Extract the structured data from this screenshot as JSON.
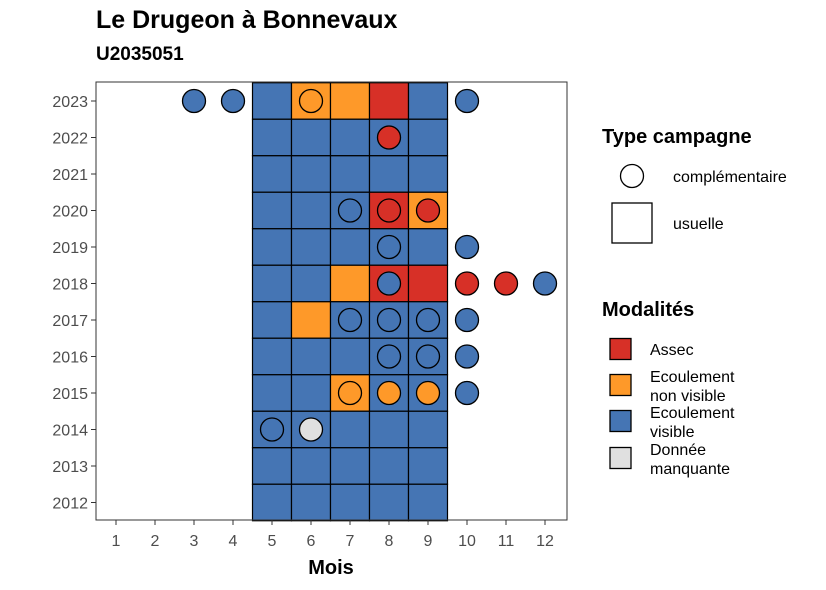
{
  "title": "Le Drugeon à Bonnevaux",
  "subtitle": "U2035051",
  "colors": {
    "assec": "#d73027",
    "ecoulement_non_visible": "#fe9929",
    "ecoulement_visible": "#4575b4",
    "donnee_manquante": "#e0e0e0"
  },
  "chart_data": {
    "type": "heatmap",
    "xlabel": "Mois",
    "x_ticks": [
      "1",
      "2",
      "3",
      "4",
      "5",
      "6",
      "7",
      "8",
      "9",
      "10",
      "11",
      "12"
    ],
    "y_ticks": [
      "2023",
      "2022",
      "2021",
      "2020",
      "2019",
      "2018",
      "2017",
      "2016",
      "2015",
      "2014",
      "2013",
      "2012"
    ],
    "tiles": [
      {
        "year": 2023,
        "month": 5,
        "modalite": "ecoulement_visible"
      },
      {
        "year": 2023,
        "month": 6,
        "modalite": "ecoulement_non_visible"
      },
      {
        "year": 2023,
        "month": 7,
        "modalite": "ecoulement_non_visible"
      },
      {
        "year": 2023,
        "month": 8,
        "modalite": "assec"
      },
      {
        "year": 2023,
        "month": 9,
        "modalite": "ecoulement_visible"
      },
      {
        "year": 2022,
        "month": 5,
        "modalite": "ecoulement_visible"
      },
      {
        "year": 2022,
        "month": 6,
        "modalite": "ecoulement_visible"
      },
      {
        "year": 2022,
        "month": 7,
        "modalite": "ecoulement_visible"
      },
      {
        "year": 2022,
        "month": 8,
        "modalite": "ecoulement_visible"
      },
      {
        "year": 2022,
        "month": 9,
        "modalite": "ecoulement_visible"
      },
      {
        "year": 2021,
        "month": 5,
        "modalite": "ecoulement_visible"
      },
      {
        "year": 2021,
        "month": 6,
        "modalite": "ecoulement_visible"
      },
      {
        "year": 2021,
        "month": 7,
        "modalite": "ecoulement_visible"
      },
      {
        "year": 2021,
        "month": 8,
        "modalite": "ecoulement_visible"
      },
      {
        "year": 2021,
        "month": 9,
        "modalite": "ecoulement_visible"
      },
      {
        "year": 2020,
        "month": 5,
        "modalite": "ecoulement_visible"
      },
      {
        "year": 2020,
        "month": 6,
        "modalite": "ecoulement_visible"
      },
      {
        "year": 2020,
        "month": 7,
        "modalite": "ecoulement_visible"
      },
      {
        "year": 2020,
        "month": 8,
        "modalite": "assec"
      },
      {
        "year": 2020,
        "month": 9,
        "modalite": "ecoulement_non_visible"
      },
      {
        "year": 2019,
        "month": 5,
        "modalite": "ecoulement_visible"
      },
      {
        "year": 2019,
        "month": 6,
        "modalite": "ecoulement_visible"
      },
      {
        "year": 2019,
        "month": 7,
        "modalite": "ecoulement_visible"
      },
      {
        "year": 2019,
        "month": 8,
        "modalite": "ecoulement_visible"
      },
      {
        "year": 2019,
        "month": 9,
        "modalite": "ecoulement_visible"
      },
      {
        "year": 2018,
        "month": 5,
        "modalite": "ecoulement_visible"
      },
      {
        "year": 2018,
        "month": 6,
        "modalite": "ecoulement_visible"
      },
      {
        "year": 2018,
        "month": 7,
        "modalite": "ecoulement_non_visible"
      },
      {
        "year": 2018,
        "month": 8,
        "modalite": "assec"
      },
      {
        "year": 2018,
        "month": 9,
        "modalite": "assec"
      },
      {
        "year": 2017,
        "month": 5,
        "modalite": "ecoulement_visible"
      },
      {
        "year": 2017,
        "month": 6,
        "modalite": "ecoulement_non_visible"
      },
      {
        "year": 2017,
        "month": 7,
        "modalite": "ecoulement_visible"
      },
      {
        "year": 2017,
        "month": 8,
        "modalite": "ecoulement_visible"
      },
      {
        "year": 2017,
        "month": 9,
        "modalite": "ecoulement_visible"
      },
      {
        "year": 2016,
        "month": 5,
        "modalite": "ecoulement_visible"
      },
      {
        "year": 2016,
        "month": 6,
        "modalite": "ecoulement_visible"
      },
      {
        "year": 2016,
        "month": 7,
        "modalite": "ecoulement_visible"
      },
      {
        "year": 2016,
        "month": 8,
        "modalite": "ecoulement_visible"
      },
      {
        "year": 2016,
        "month": 9,
        "modalite": "ecoulement_visible"
      },
      {
        "year": 2015,
        "month": 5,
        "modalite": "ecoulement_visible"
      },
      {
        "year": 2015,
        "month": 6,
        "modalite": "ecoulement_visible"
      },
      {
        "year": 2015,
        "month": 7,
        "modalite": "ecoulement_non_visible"
      },
      {
        "year": 2015,
        "month": 8,
        "modalite": "ecoulement_visible"
      },
      {
        "year": 2015,
        "month": 9,
        "modalite": "ecoulement_visible"
      },
      {
        "year": 2014,
        "month": 5,
        "modalite": "ecoulement_visible"
      },
      {
        "year": 2014,
        "month": 6,
        "modalite": "ecoulement_visible"
      },
      {
        "year": 2014,
        "month": 7,
        "modalite": "ecoulement_visible"
      },
      {
        "year": 2014,
        "month": 8,
        "modalite": "ecoulement_visible"
      },
      {
        "year": 2014,
        "month": 9,
        "modalite": "ecoulement_visible"
      },
      {
        "year": 2013,
        "month": 5,
        "modalite": "ecoulement_visible"
      },
      {
        "year": 2013,
        "month": 6,
        "modalite": "ecoulement_visible"
      },
      {
        "year": 2013,
        "month": 7,
        "modalite": "ecoulement_visible"
      },
      {
        "year": 2013,
        "month": 8,
        "modalite": "ecoulement_visible"
      },
      {
        "year": 2013,
        "month": 9,
        "modalite": "ecoulement_visible"
      },
      {
        "year": 2012,
        "month": 5,
        "modalite": "ecoulement_visible"
      },
      {
        "year": 2012,
        "month": 6,
        "modalite": "ecoulement_visible"
      },
      {
        "year": 2012,
        "month": 7,
        "modalite": "ecoulement_visible"
      },
      {
        "year": 2012,
        "month": 8,
        "modalite": "ecoulement_visible"
      },
      {
        "year": 2012,
        "month": 9,
        "modalite": "ecoulement_visible"
      }
    ],
    "points": [
      {
        "year": 2023,
        "month": 3,
        "modalite": "ecoulement_visible"
      },
      {
        "year": 2023,
        "month": 4,
        "modalite": "ecoulement_visible"
      },
      {
        "year": 2023,
        "month": 6,
        "modalite": "ecoulement_non_visible"
      },
      {
        "year": 2023,
        "month": 10,
        "modalite": "ecoulement_visible"
      },
      {
        "year": 2022,
        "month": 8,
        "modalite": "assec"
      },
      {
        "year": 2020,
        "month": 7,
        "modalite": "ecoulement_visible"
      },
      {
        "year": 2020,
        "month": 8,
        "modalite": "assec"
      },
      {
        "year": 2020,
        "month": 9,
        "modalite": "assec"
      },
      {
        "year": 2019,
        "month": 8,
        "modalite": "ecoulement_visible"
      },
      {
        "year": 2019,
        "month": 10,
        "modalite": "ecoulement_visible"
      },
      {
        "year": 2018,
        "month": 8,
        "modalite": "ecoulement_visible"
      },
      {
        "year": 2018,
        "month": 10,
        "modalite": "assec"
      },
      {
        "year": 2018,
        "month": 11,
        "modalite": "assec"
      },
      {
        "year": 2018,
        "month": 12,
        "modalite": "ecoulement_visible"
      },
      {
        "year": 2017,
        "month": 7,
        "modalite": "ecoulement_visible"
      },
      {
        "year": 2017,
        "month": 8,
        "modalite": "ecoulement_visible"
      },
      {
        "year": 2017,
        "month": 9,
        "modalite": "ecoulement_visible"
      },
      {
        "year": 2017,
        "month": 10,
        "modalite": "ecoulement_visible"
      },
      {
        "year": 2016,
        "month": 8,
        "modalite": "ecoulement_visible"
      },
      {
        "year": 2016,
        "month": 9,
        "modalite": "ecoulement_visible"
      },
      {
        "year": 2016,
        "month": 10,
        "modalite": "ecoulement_visible"
      },
      {
        "year": 2015,
        "month": 7,
        "modalite": "ecoulement_non_visible"
      },
      {
        "year": 2015,
        "month": 8,
        "modalite": "ecoulement_non_visible"
      },
      {
        "year": 2015,
        "month": 9,
        "modalite": "ecoulement_non_visible"
      },
      {
        "year": 2015,
        "month": 10,
        "modalite": "ecoulement_visible"
      },
      {
        "year": 2014,
        "month": 5,
        "modalite": "ecoulement_visible"
      },
      {
        "year": 2014,
        "month": 6,
        "modalite": "donnee_manquante"
      }
    ],
    "legend": {
      "placement": "right",
      "type_campagne": {
        "title": "Type campagne",
        "items": [
          {
            "shape": "circle",
            "label": "complémentaire"
          },
          {
            "shape": "square",
            "label": "usuelle"
          }
        ]
      },
      "modalites": {
        "title": "Modalités",
        "items": [
          {
            "key": "assec",
            "lines": [
              "Assec"
            ]
          },
          {
            "key": "ecoulement_non_visible",
            "lines": [
              "Ecoulement",
              "non visible"
            ]
          },
          {
            "key": "ecoulement_visible",
            "lines": [
              "Ecoulement",
              "visible"
            ]
          },
          {
            "key": "donnee_manquante",
            "lines": [
              "Donnée",
              "manquante"
            ]
          }
        ]
      }
    }
  }
}
